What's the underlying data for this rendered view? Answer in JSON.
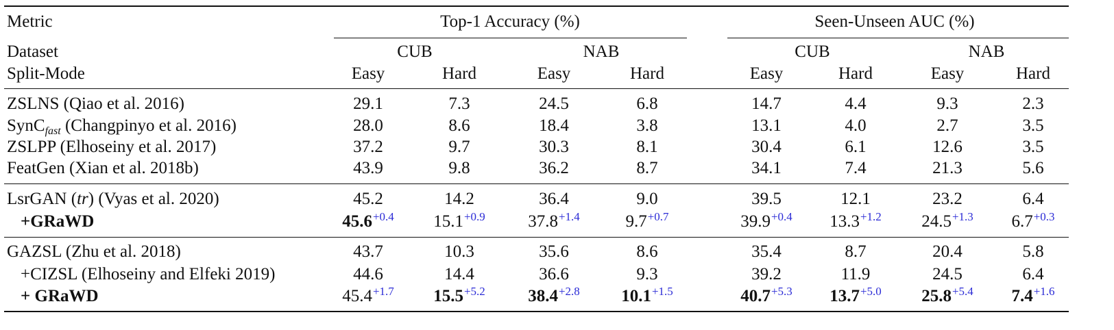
{
  "header": {
    "metric_label": "Metric",
    "dataset_label": "Dataset",
    "split_label": "Split-Mode",
    "group_top1": "Top-1 Accuracy (%)",
    "group_auc": "Seen-Unseen AUC (%)",
    "datasets": [
      "CUB",
      "NAB",
      "CUB",
      "NAB"
    ],
    "splits": [
      "Easy",
      "Hard",
      "Easy",
      "Hard",
      "Easy",
      "Hard",
      "Easy",
      "Hard"
    ]
  },
  "sections": [
    {
      "rows": [
        {
          "name": "ZSLNS (Qiao et al. 2016)",
          "bold_name": false,
          "cells": [
            {
              "v": "29.1"
            },
            {
              "v": "7.3"
            },
            {
              "v": "24.5"
            },
            {
              "v": "6.8"
            },
            {
              "v": "14.7"
            },
            {
              "v": "4.4"
            },
            {
              "v": "9.3"
            },
            {
              "v": "2.3"
            }
          ]
        },
        {
          "name_main": "SynC",
          "name_sub": "fast",
          "name_rest": " (Changpinyo et al. 2016)",
          "bold_name": false,
          "cells": [
            {
              "v": "28.0"
            },
            {
              "v": "8.6"
            },
            {
              "v": "18.4"
            },
            {
              "v": "3.8"
            },
            {
              "v": "13.1"
            },
            {
              "v": "4.0"
            },
            {
              "v": "2.7"
            },
            {
              "v": "3.5"
            }
          ]
        },
        {
          "name": "ZSLPP (Elhoseiny et al. 2017)",
          "bold_name": false,
          "cells": [
            {
              "v": "37.2"
            },
            {
              "v": "9.7"
            },
            {
              "v": "30.3"
            },
            {
              "v": "8.1"
            },
            {
              "v": "30.4"
            },
            {
              "v": "6.1"
            },
            {
              "v": "12.6"
            },
            {
              "v": "3.5"
            }
          ]
        },
        {
          "name": "FeatGen (Xian et al. 2018b)",
          "bold_name": false,
          "cells": [
            {
              "v": "43.9"
            },
            {
              "v": "9.8"
            },
            {
              "v": "36.2"
            },
            {
              "v": "8.7"
            },
            {
              "v": "34.1"
            },
            {
              "v": "7.4"
            },
            {
              "v": "21.3"
            },
            {
              "v": "5.6"
            }
          ]
        }
      ]
    },
    {
      "rows": [
        {
          "name_pre": "LsrGAN (",
          "name_ital": "tr",
          "name_post": ") (Vyas et al. 2020)",
          "bold_name": false,
          "cells": [
            {
              "v": "45.2"
            },
            {
              "v": "14.2"
            },
            {
              "v": "36.4"
            },
            {
              "v": "9.0"
            },
            {
              "v": "39.5"
            },
            {
              "v": "12.1"
            },
            {
              "v": "23.2"
            },
            {
              "v": "6.4"
            }
          ]
        },
        {
          "name": "+GRaWD",
          "bold_name": true,
          "cells": [
            {
              "v": "45.6",
              "d": "+0.4",
              "b": true
            },
            {
              "v": "15.1",
              "d": "+0.9"
            },
            {
              "v": "37.8",
              "d": "+1.4"
            },
            {
              "v": "9.7",
              "d": "+0.7"
            },
            {
              "v": "39.9",
              "d": "+0.4"
            },
            {
              "v": "13.3",
              "d": "+1.2"
            },
            {
              "v": "24.5",
              "d": "+1.3"
            },
            {
              "v": "6.7",
              "d": "+0.3"
            }
          ]
        }
      ]
    },
    {
      "rows": [
        {
          "name": "GAZSL (Zhu et al. 2018)",
          "bold_name": false,
          "cells": [
            {
              "v": "43.7"
            },
            {
              "v": "10.3"
            },
            {
              "v": "35.6"
            },
            {
              "v": "8.6"
            },
            {
              "v": "35.4"
            },
            {
              "v": "8.7"
            },
            {
              "v": "20.4"
            },
            {
              "v": "5.8"
            }
          ]
        },
        {
          "name": "+CIZSL (Elhoseiny and Elfeki 2019)",
          "bold_name": false,
          "cells": [
            {
              "v": "44.6"
            },
            {
              "v": "14.4"
            },
            {
              "v": "36.6"
            },
            {
              "v": "9.3"
            },
            {
              "v": "39.2"
            },
            {
              "v": "11.9"
            },
            {
              "v": "24.5"
            },
            {
              "v": "6.4"
            }
          ]
        },
        {
          "name": "+ GRaWD",
          "bold_name": true,
          "cells": [
            {
              "v": "45.4",
              "d": "+1.7"
            },
            {
              "v": "15.5",
              "d": "+5.2",
              "b": true
            },
            {
              "v": "38.4",
              "d": "+2.8",
              "b": true
            },
            {
              "v": "10.1",
              "d": "+1.5",
              "b": true
            },
            {
              "v": "40.7",
              "d": "+5.3",
              "b": true
            },
            {
              "v": "13.7",
              "d": "+5.0",
              "b": true
            },
            {
              "v": "25.8",
              "d": "+5.4",
              "b": true
            },
            {
              "v": "7.4",
              "d": "+1.6",
              "b": true
            }
          ]
        }
      ]
    }
  ]
}
